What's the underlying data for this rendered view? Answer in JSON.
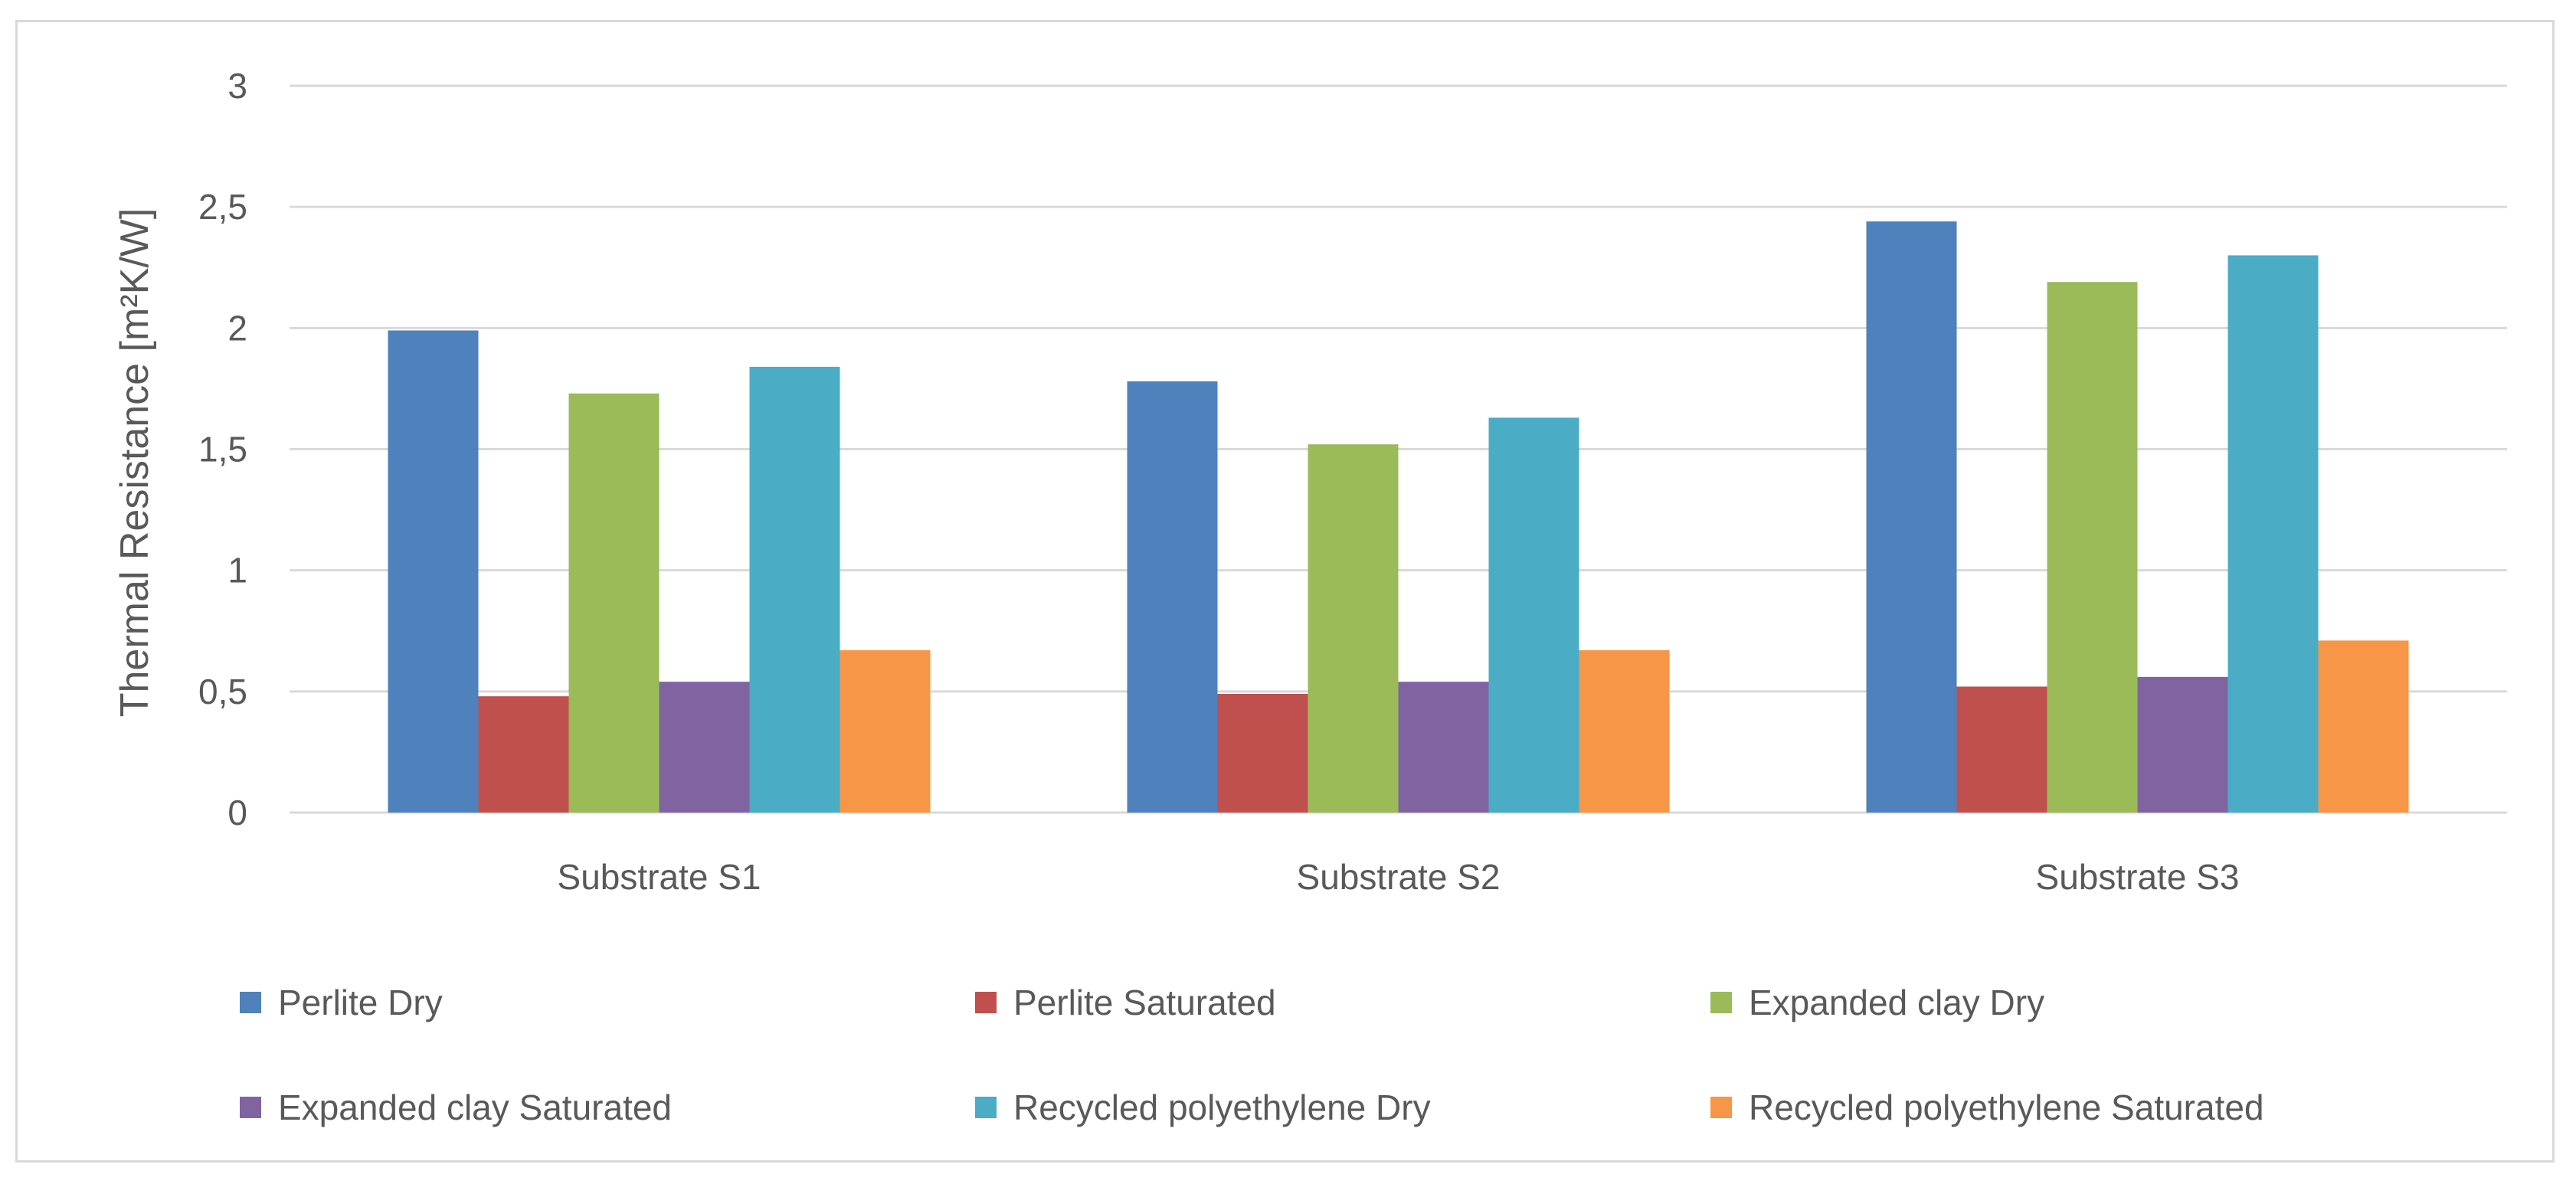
{
  "chart_data": {
    "type": "bar",
    "title": "",
    "xlabel": "",
    "ylabel": "Thermal Resistance [m²K/W]",
    "ylim": [
      0,
      3
    ],
    "yticks": [
      "0",
      "0,5",
      "1",
      "1,5",
      "2",
      "2,5",
      "3"
    ],
    "grid": true,
    "legend_position": "bottom",
    "categories": [
      "Substrate S1",
      "Substrate S2",
      "Substrate S3"
    ],
    "series": [
      {
        "name": "Perlite Dry",
        "color": "#4f81bd",
        "values": [
          1.99,
          1.78,
          2.44
        ]
      },
      {
        "name": "Perlite Saturated",
        "color": "#c0504d",
        "values": [
          0.48,
          0.49,
          0.52
        ]
      },
      {
        "name": "Expanded clay Dry",
        "color": "#9bbb59",
        "values": [
          1.73,
          1.52,
          2.19
        ]
      },
      {
        "name": "Expanded clay Saturated",
        "color": "#8064a2",
        "values": [
          0.54,
          0.54,
          0.56
        ]
      },
      {
        "name": "Recycled polyethylene Dry",
        "color": "#4bacc6",
        "values": [
          1.84,
          1.63,
          2.3
        ]
      },
      {
        "name": "Recycled polyethylene Saturated",
        "color": "#f79646",
        "values": [
          0.67,
          0.67,
          0.71
        ]
      }
    ]
  }
}
